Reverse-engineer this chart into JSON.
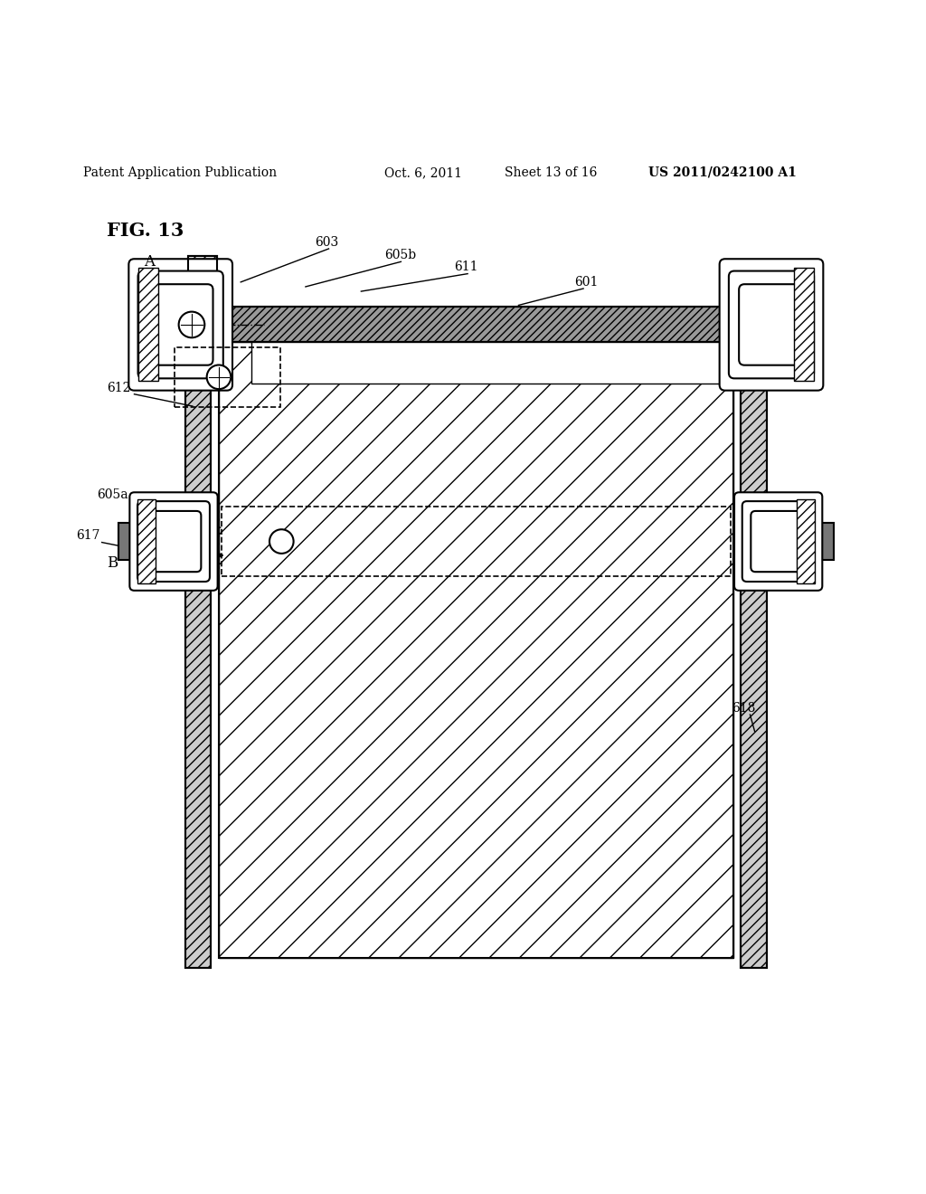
{
  "bg_color": "#ffffff",
  "header_text": "Patent Application Publication",
  "header_date": "Oct. 6, 2011",
  "header_sheet": "Sheet 13 of 16",
  "header_patent": "US 2011/0242100 A1",
  "fig_label": "FIG. 13"
}
